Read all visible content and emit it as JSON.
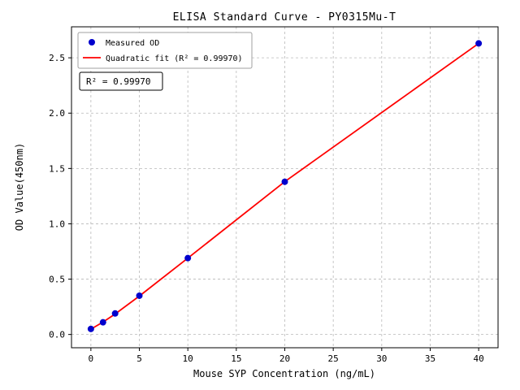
{
  "figure": {
    "background": "#ffffff"
  },
  "chart_data": {
    "type": "scatter",
    "title": "ELISA Standard Curve - PY0315Mu-T",
    "xlabel": "Mouse SYP Concentration (ng/mL)",
    "ylabel": "OD Value(450nm)",
    "xlim": [
      -2,
      42
    ],
    "ylim": [
      -0.12,
      2.78
    ],
    "xtick_values": [
      0,
      5,
      10,
      15,
      20,
      25,
      30,
      35,
      40
    ],
    "xtick_labels": [
      "0",
      "5",
      "10",
      "15",
      "20",
      "25",
      "30",
      "35",
      "40"
    ],
    "ytick_values": [
      0,
      0.5,
      1.0,
      1.5,
      2.0,
      2.5
    ],
    "ytick_labels": [
      "0.0",
      "0.5",
      "1.0",
      "1.5",
      "2.0",
      "2.5"
    ],
    "grid": true,
    "legend_position": "upper-left",
    "series": [
      {
        "name": "Measured OD",
        "kind": "scatter",
        "color": "#0000cd",
        "x": [
          0,
          1.25,
          2.5,
          5,
          10,
          20,
          40
        ],
        "y": [
          0.05,
          0.11,
          0.19,
          0.35,
          0.69,
          1.38,
          2.63
        ]
      },
      {
        "name": "Quadratic fit (R² = 0.99970)",
        "kind": "line",
        "color": "#ff0000",
        "x": [
          0,
          1.25,
          2.5,
          5,
          10,
          20,
          40
        ],
        "y": [
          0.048,
          0.112,
          0.185,
          0.347,
          0.69,
          1.381,
          2.63
        ]
      }
    ],
    "annotation": "R² = 0.99970",
    "colors": {
      "grid": "#b8b8b8",
      "frame": "#000000",
      "marker": "#0000cd",
      "fit_line": "#ff0000"
    }
  }
}
